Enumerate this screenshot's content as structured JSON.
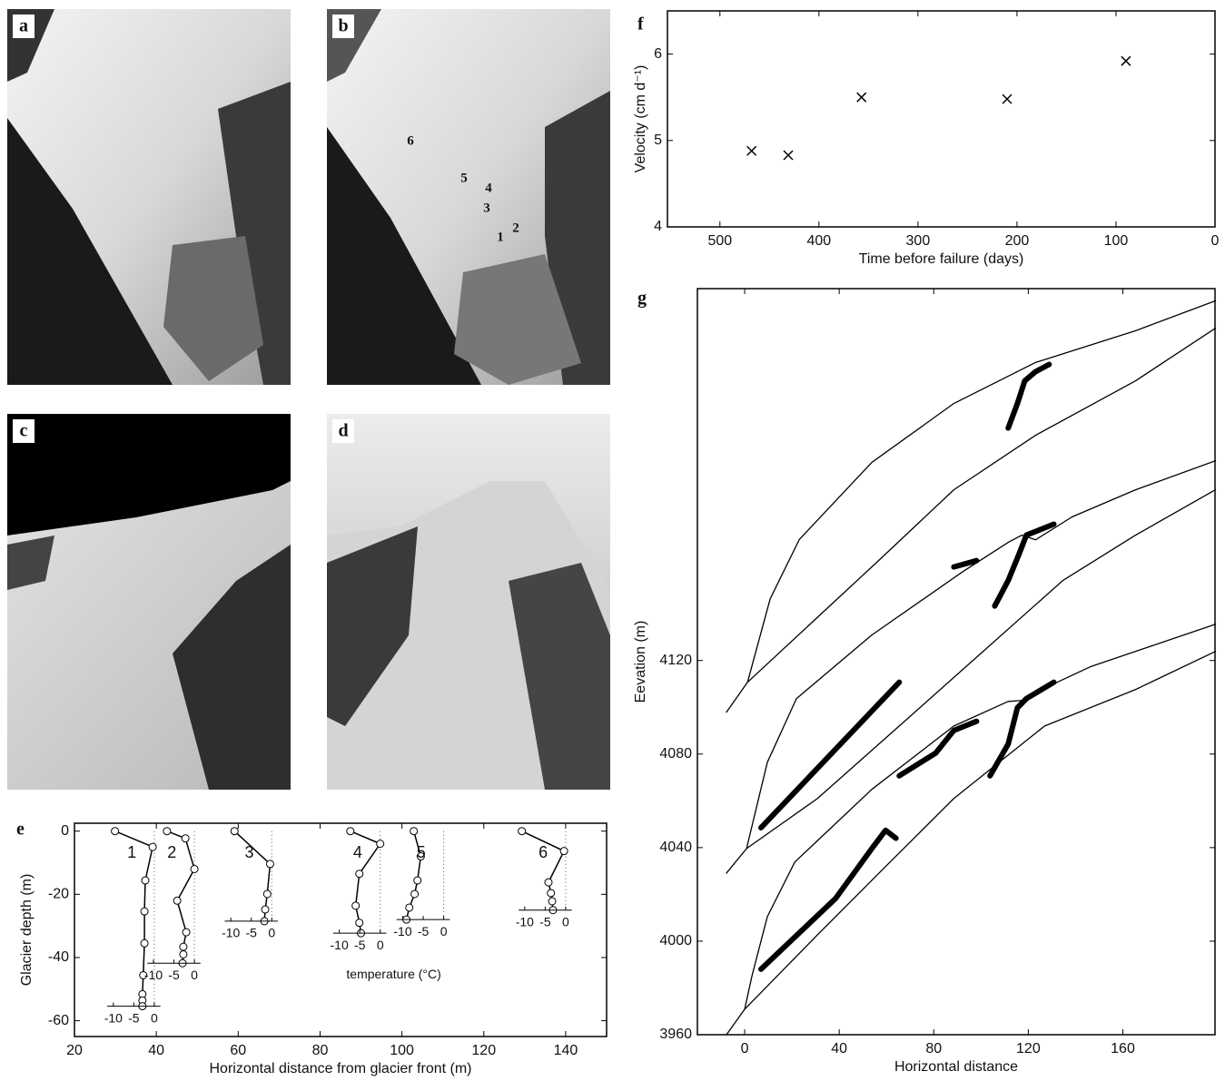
{
  "photos": [
    {
      "label": "a"
    },
    {
      "label": "b",
      "markers": [
        "6",
        "5",
        "4",
        "3",
        "2",
        "1"
      ]
    },
    {
      "label": "c"
    },
    {
      "label": "d"
    }
  ],
  "chart_data": [
    {
      "type": "profiles",
      "panel": "e",
      "ylabel": "Glacier depth (m)",
      "xlabel": "Horizontal distance from glacier front (m)",
      "xlim": [
        20,
        150
      ],
      "xticks": [
        20,
        40,
        60,
        80,
        100,
        120,
        140
      ],
      "ylim": [
        -65,
        2.5
      ],
      "yticks": [
        0,
        -20,
        -40,
        -60
      ],
      "temp_ticks": [
        -10,
        -5,
        0
      ],
      "temp_label": "temperature (°C)",
      "color": "#000",
      "series": [
        {
          "name": "1",
          "x_position": 39.5,
          "depth": [
            0,
            -5,
            -15.6,
            -25.4,
            -35.5,
            -45.6,
            -51.6,
            -53.6,
            -55.4
          ],
          "temperature": [
            -9.6,
            -0.4,
            -2.2,
            -2.4,
            -2.4,
            -2.7,
            -2.9,
            -2.9,
            -2.9
          ]
        },
        {
          "name": "2",
          "x_position": 49.3,
          "depth": [
            0,
            -2.3,
            -12,
            -22,
            -32,
            -36.6,
            -39,
            -41.8
          ],
          "temperature": [
            -6.7,
            -2.2,
            0,
            -4.2,
            -2,
            -2.7,
            -2.7,
            -2.9
          ]
        },
        {
          "name": "3",
          "x_position": 68.2,
          "depth": [
            0,
            -10.4,
            -19.9,
            -24.8,
            -28.5
          ],
          "temperature": [
            -9.1,
            -0.4,
            -1.1,
            -1.6,
            -1.8
          ]
        },
        {
          "name": "4",
          "x_position": 94.7,
          "depth": [
            0,
            -4,
            -13.5,
            -23.6,
            -29,
            -32.3
          ],
          "temperature": [
            -7.3,
            0,
            -5.1,
            -6,
            -5.1,
            -4.7
          ]
        },
        {
          "name": "5",
          "x_position": 110.2,
          "depth": [
            0,
            -8,
            -15.6,
            -19.9,
            -24.2,
            -28
          ],
          "temperature": [
            -7.3,
            -5.6,
            -6.4,
            -7.1,
            -8.4,
            -9.1
          ]
        },
        {
          "name": "6",
          "x_position": 140,
          "depth": [
            0,
            -6.3,
            -16.2,
            -19.6,
            -22.2,
            -25
          ],
          "temperature": [
            -10.7,
            -0.4,
            -4.2,
            -3.6,
            -3.3,
            -3.1
          ]
        }
      ]
    },
    {
      "type": "scatter",
      "panel": "f",
      "ylabel": "Velocity (cm d⁻¹)",
      "xlabel": "Time before failure (days)",
      "xlim": [
        553,
        0
      ],
      "xticks": [
        500,
        400,
        300,
        200,
        100,
        0
      ],
      "ylim": [
        4,
        6.5
      ],
      "yticks": [
        4,
        5,
        6
      ],
      "color": "#000",
      "x": [
        468,
        431,
        357,
        210,
        90
      ],
      "y": [
        4.88,
        4.83,
        5.5,
        5.48,
        5.92
      ]
    },
    {
      "type": "lines",
      "panel": "g",
      "ylabel": "Eevation (m)",
      "xlabel": "Horizontal distance",
      "xlim": [
        -20,
        199
      ],
      "xticks": [
        0,
        40,
        80,
        120,
        160
      ],
      "ylim": [
        3960,
        4279
      ],
      "yticks": [
        3960,
        4000,
        4040,
        4080,
        4120
      ],
      "color": "#000",
      "lines": [
        {
          "x": [
            -7.7,
            1.2,
            10.8,
            23.1,
            53.8,
            88.5,
            123,
            165.4,
            199.2
          ],
          "y": [
            4097.9,
            4110.7,
            4146.4,
            4171.7,
            4204.7,
            4229.9,
            4247.4,
            4261,
            4273.8
          ]
        },
        {
          "x": [
            1.2,
            55.8,
            88.5,
            123.1,
            165.4,
            199.2
          ],
          "y": [
            4110.7,
            4161.9,
            4193,
            4216.3,
            4239.6,
            4262.1
          ]
        },
        {
          "x": [
            -7.7,
            0.8,
            9.6,
            21.9,
            53.8,
            92.3,
            111.5,
            117.3,
            123.1,
            138.5,
            165.4,
            199.2
          ],
          "y": [
            4029.1,
            4039.6,
            4076.5,
            4103.7,
            4130.9,
            4158,
            4170.5,
            4173.6,
            4171.6,
            4181.4,
            4193,
            4205.4
          ]
        },
        {
          "x": [
            0.8,
            30.8,
            65.4,
            100,
            134.6,
            165.4,
            199.2
          ],
          "y": [
            4039.6,
            4061,
            4092,
            4123.1,
            4154.2,
            4173.6,
            4193
          ]
        },
        {
          "x": [
            -7.7,
            0,
            3.1,
            9.6,
            21.2,
            53.8,
            88.5,
            111.5,
            117.3,
            123.1,
            146.2,
            199.2
          ],
          "y": [
            3960,
            3970.9,
            3985.2,
            4010.5,
            4033.8,
            4064.9,
            4092,
            4102.5,
            4102.9,
            4106.4,
            4117.3,
            4135.5
          ]
        },
        {
          "x": [
            0,
            30.8,
            61.5,
            88.5,
            107.7,
            126.9,
            165.4,
            199.2
          ],
          "y": [
            3970.9,
            4002.7,
            4033.8,
            4061,
            4076.5,
            4092,
            4107.6,
            4123.9
          ]
        }
      ],
      "fractures": [
        {
          "x": [
            111.5,
            115.4,
            118.5,
            123.1,
            128.8
          ],
          "y": [
            4219.4,
            4229.9,
            4239.6,
            4243.5,
            4246.6
          ]
        },
        {
          "x": [
            105.8,
            111.5,
            116.2,
            119.2,
            130.8
          ],
          "y": [
            4143.3,
            4154.2,
            4165.8,
            4173.6,
            4178.3
          ]
        },
        {
          "x": [
            88.5,
            98.1
          ],
          "y": [
            4160,
            4162.7
          ]
        },
        {
          "x": [
            6.9,
            65.4
          ],
          "y": [
            4048.5,
            4110.7
          ]
        },
        {
          "x": [
            103.8,
            111.5,
            115.4,
            119.2,
            130.8
          ],
          "y": [
            4070.7,
            4084.3,
            4099.8,
            4103.7,
            4110.7
          ]
        },
        {
          "x": [
            65.4,
            80.8,
            88.5,
            98.1
          ],
          "y": [
            4070.7,
            4080.4,
            4090.1,
            4094
          ]
        },
        {
          "x": [
            6.9,
            38.5,
            53.8,
            59.6,
            64
          ],
          "y": [
            3988,
            4018.3,
            4039.6,
            4047.4,
            4044
          ]
        }
      ]
    }
  ]
}
